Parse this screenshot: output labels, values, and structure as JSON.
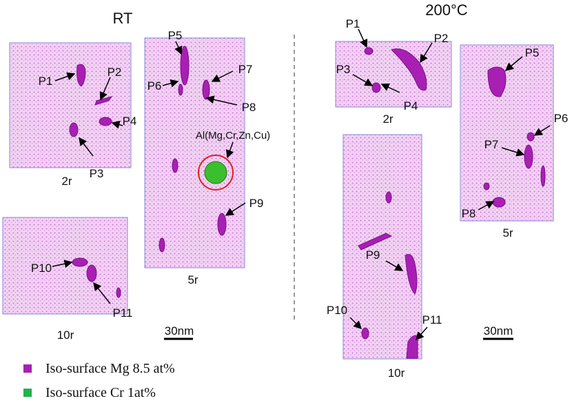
{
  "headings": {
    "left": "RT",
    "right": "200°C"
  },
  "panels": [
    {
      "label": "2r",
      "precipitates": [
        "P1",
        "P2",
        "P3",
        "P4"
      ]
    },
    {
      "label": "5r",
      "precipitates": [
        "P5",
        "P6",
        "P7",
        "P8",
        "P9"
      ]
    },
    {
      "label": "10r",
      "precipitates": [
        "P10",
        "P11"
      ]
    },
    {
      "label": "2r",
      "precipitates": [
        "P1",
        "P2",
        "P3",
        "P4"
      ]
    },
    {
      "label": "5r",
      "precipitates": [
        "P5",
        "P6",
        "P7",
        "P8"
      ]
    },
    {
      "label": "10r",
      "precipitates": [
        "P9",
        "P10",
        "P11"
      ]
    }
  ],
  "annotation": "Al(Mg,Cr,Zn,Cu)",
  "scale_bars": [
    "30nm",
    "30nm"
  ],
  "legend": [
    "Iso-surface Mg 8.5 at%",
    "Iso-surface Cr 1at%"
  ]
}
